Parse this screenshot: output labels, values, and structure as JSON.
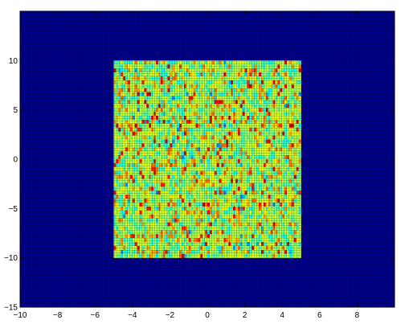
{
  "chart_data": {
    "type": "heatmap",
    "title": "",
    "xlabel": "",
    "ylabel": "",
    "xlim": [
      -10,
      10
    ],
    "ylim": [
      -15,
      15
    ],
    "x_ticks": [
      -10,
      -8,
      -6,
      -4,
      -2,
      0,
      2,
      4,
      6,
      8
    ],
    "y_ticks": [
      -15,
      -10,
      -5,
      0,
      5,
      10
    ],
    "x_tick_labels": [
      "−10",
      "−8",
      "−6",
      "−4",
      "−2",
      "0",
      "2",
      "4",
      "6",
      "8"
    ],
    "y_tick_labels": [
      "−15",
      "−10",
      "−5",
      "0",
      "5",
      "10"
    ],
    "grid": true,
    "colormap": "jet",
    "background_value": 0,
    "background_color": "#00008f",
    "active_region": {
      "x_range": [
        -5,
        5
      ],
      "y_range": [
        -10,
        10
      ],
      "dominant_color": "#c8ff7a",
      "approx_values": "mostly mid-high (cyan to yellow) with scattered orange/red cells"
    }
  }
}
